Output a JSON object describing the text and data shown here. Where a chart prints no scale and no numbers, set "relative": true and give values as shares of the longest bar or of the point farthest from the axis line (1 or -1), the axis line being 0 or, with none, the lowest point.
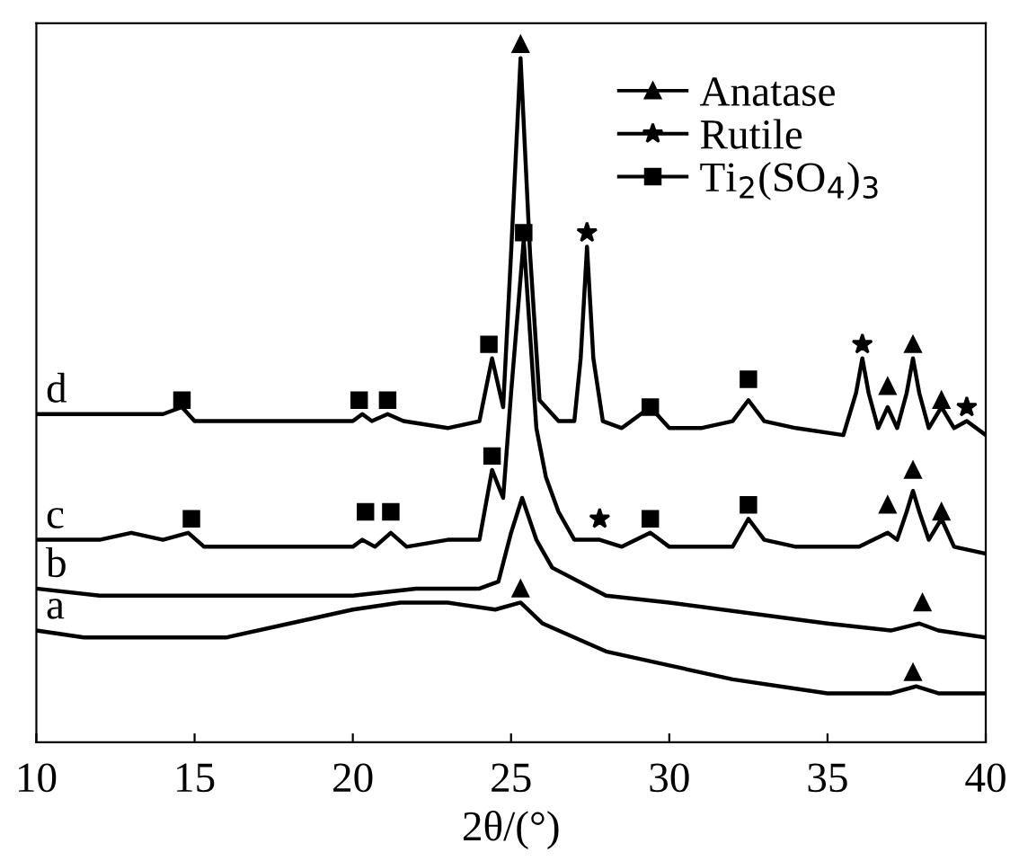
{
  "chart_data": {
    "type": "line",
    "xlabel": "2θ/(°)",
    "relative": true,
    "xlim": [
      10,
      40
    ],
    "xticks": [
      10,
      15,
      20,
      25,
      30,
      35,
      40
    ],
    "legend": "top right",
    "grid": false,
    "series": [
      {
        "name": "d",
        "color": "#000000",
        "x": [
          10,
          12,
          13,
          14,
          14.6,
          15,
          16,
          18,
          20,
          20.3,
          20.6,
          21.1,
          21.6,
          23,
          24.0,
          24.4,
          24.75,
          25.0,
          25.3,
          25.6,
          25.9,
          26.5,
          27.0,
          27.2,
          27.4,
          27.6,
          27.9,
          28.5,
          29.4,
          30,
          31,
          32,
          32.5,
          33,
          34,
          35.5,
          35.9,
          36.1,
          36.3,
          36.6,
          36.9,
          37.2,
          37.5,
          37.7,
          37.9,
          38.2,
          38.6,
          39,
          39.4,
          40
        ],
        "values": [
          0.47,
          0.47,
          0.47,
          0.47,
          0.48,
          0.46,
          0.46,
          0.46,
          0.46,
          0.47,
          0.46,
          0.47,
          0.46,
          0.45,
          0.46,
          0.55,
          0.48,
          0.7,
          0.98,
          0.7,
          0.49,
          0.46,
          0.46,
          0.55,
          0.71,
          0.55,
          0.46,
          0.45,
          0.48,
          0.45,
          0.45,
          0.46,
          0.49,
          0.46,
          0.45,
          0.44,
          0.5,
          0.55,
          0.5,
          0.45,
          0.48,
          0.45,
          0.5,
          0.55,
          0.5,
          0.45,
          0.48,
          0.45,
          0.46,
          0.44
        ]
      },
      {
        "name": "c",
        "color": "#000000",
        "x": [
          10,
          12,
          13,
          14,
          14.8,
          15.3,
          17,
          20,
          20.3,
          20.7,
          21.2,
          21.7,
          23,
          24.0,
          24.4,
          24.75,
          25.0,
          25.4,
          25.8,
          26.1,
          26.5,
          27,
          27.8,
          28.5,
          29.4,
          30,
          32,
          32.5,
          33,
          34,
          36,
          36.9,
          37.2,
          37.5,
          37.7,
          37.9,
          38.2,
          38.6,
          39,
          40
        ],
        "values": [
          0.29,
          0.29,
          0.3,
          0.29,
          0.3,
          0.28,
          0.28,
          0.28,
          0.29,
          0.28,
          0.3,
          0.28,
          0.29,
          0.29,
          0.39,
          0.35,
          0.5,
          0.72,
          0.45,
          0.38,
          0.33,
          0.29,
          0.29,
          0.28,
          0.3,
          0.28,
          0.28,
          0.32,
          0.29,
          0.28,
          0.28,
          0.3,
          0.29,
          0.33,
          0.36,
          0.33,
          0.29,
          0.32,
          0.28,
          0.27
        ]
      },
      {
        "name": "b",
        "color": "#000000",
        "x": [
          10,
          12,
          14,
          16,
          18,
          20,
          22,
          24,
          24.6,
          25.0,
          25.35,
          25.8,
          26.3,
          28,
          30,
          35,
          37,
          37.9,
          38.5,
          40
        ],
        "values": [
          0.22,
          0.21,
          0.21,
          0.21,
          0.21,
          0.21,
          0.22,
          0.22,
          0.23,
          0.3,
          0.35,
          0.29,
          0.25,
          0.21,
          0.2,
          0.17,
          0.16,
          0.17,
          0.16,
          0.15
        ]
      },
      {
        "name": "a",
        "color": "#000000",
        "x": [
          10,
          11.5,
          14,
          16,
          18,
          20,
          21.5,
          23,
          24.5,
          25.3,
          26,
          28,
          30,
          32,
          35,
          37,
          37.8,
          38.5,
          40
        ],
        "values": [
          0.16,
          0.15,
          0.15,
          0.15,
          0.17,
          0.19,
          0.2,
          0.2,
          0.19,
          0.2,
          0.17,
          0.13,
          0.11,
          0.09,
          0.07,
          0.07,
          0.08,
          0.07,
          0.07
        ]
      },
      {
        "name": "Anatase",
        "type": "scatter",
        "marker": "triangle",
        "color": "#000000",
        "x": [
          25.3,
          36.9,
          37.7,
          38.6,
          36.9,
          37.7,
          38.6,
          38,
          25.3,
          37.7
        ],
        "values": [
          1.0,
          0.51,
          0.57,
          0.49,
          0.34,
          0.39,
          0.33,
          0.2,
          0.22,
          0.1
        ]
      },
      {
        "name": "Rutile",
        "type": "scatter",
        "marker": "star",
        "color": "#000000",
        "x": [
          27.4,
          36.1,
          39.4,
          27.8
        ],
        "values": [
          0.73,
          0.57,
          0.48,
          0.32
        ]
      },
      {
        "name": "Ti$_{2}$(SO$_{4}$)$_{3}$",
        "type": "scatter",
        "marker": "square",
        "color": "#000000",
        "x": [
          14.6,
          20.2,
          21.1,
          24.3,
          29.4,
          32.5,
          14.9,
          20.4,
          21.2,
          24.4,
          25.4,
          29.4,
          32.5
        ],
        "values": [
          0.49,
          0.49,
          0.49,
          0.57,
          0.48,
          0.52,
          0.32,
          0.33,
          0.33,
          0.41,
          0.73,
          0.32,
          0.34
        ]
      }
    ]
  }
}
